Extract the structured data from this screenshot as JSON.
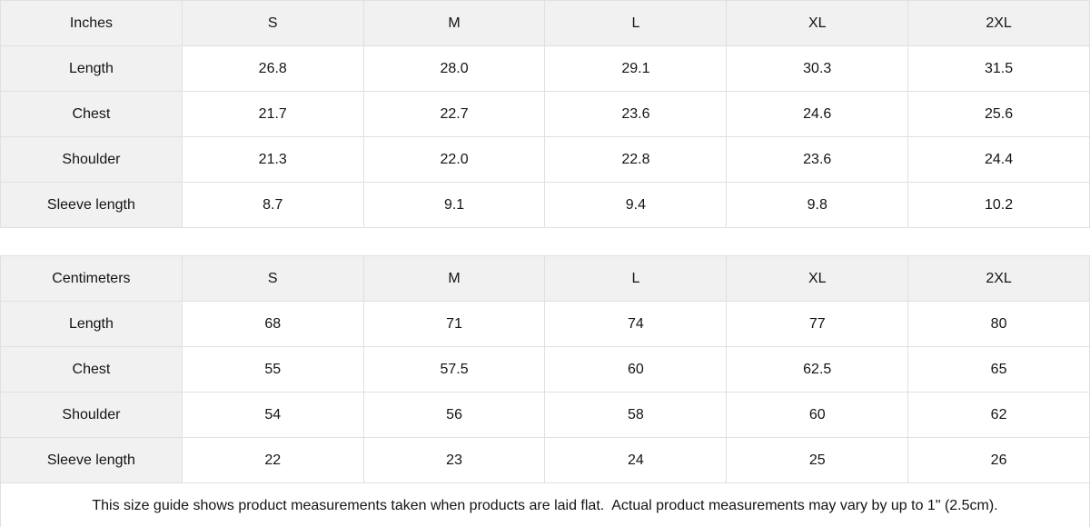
{
  "tables": [
    {
      "unit_label": "Inches",
      "sizes": [
        "S",
        "M",
        "L",
        "XL",
        "2XL"
      ],
      "rows": [
        {
          "label": "Length",
          "values": [
            "26.8",
            "28.0",
            "29.1",
            "30.3",
            "31.5"
          ]
        },
        {
          "label": "Chest",
          "values": [
            "21.7",
            "22.7",
            "23.6",
            "24.6",
            "25.6"
          ]
        },
        {
          "label": "Shoulder",
          "values": [
            "21.3",
            "22.0",
            "22.8",
            "23.6",
            "24.4"
          ]
        },
        {
          "label": "Sleeve length",
          "values": [
            "8.7",
            "9.1",
            "9.4",
            "9.8",
            "10.2"
          ]
        }
      ]
    },
    {
      "unit_label": "Centimeters",
      "sizes": [
        "S",
        "M",
        "L",
        "XL",
        "2XL"
      ],
      "rows": [
        {
          "label": "Length",
          "values": [
            "68",
            "71",
            "74",
            "77",
            "80"
          ]
        },
        {
          "label": "Chest",
          "values": [
            "55",
            "57.5",
            "60",
            "62.5",
            "65"
          ]
        },
        {
          "label": "Shoulder",
          "values": [
            "54",
            "56",
            "58",
            "60",
            "62"
          ]
        },
        {
          "label": "Sleeve length",
          "values": [
            "22",
            "23",
            "24",
            "25",
            "26"
          ]
        }
      ]
    }
  ],
  "footer": {
    "note": "This size guide shows product measurements taken when products are laid flat.  Actual product measurements may vary by up to 1\" (2.5cm)."
  },
  "colors": {
    "header_bg": "#f1f1f1",
    "border": "#e0e0e0",
    "text": "#141414",
    "row_bg": "#ffffff"
  }
}
